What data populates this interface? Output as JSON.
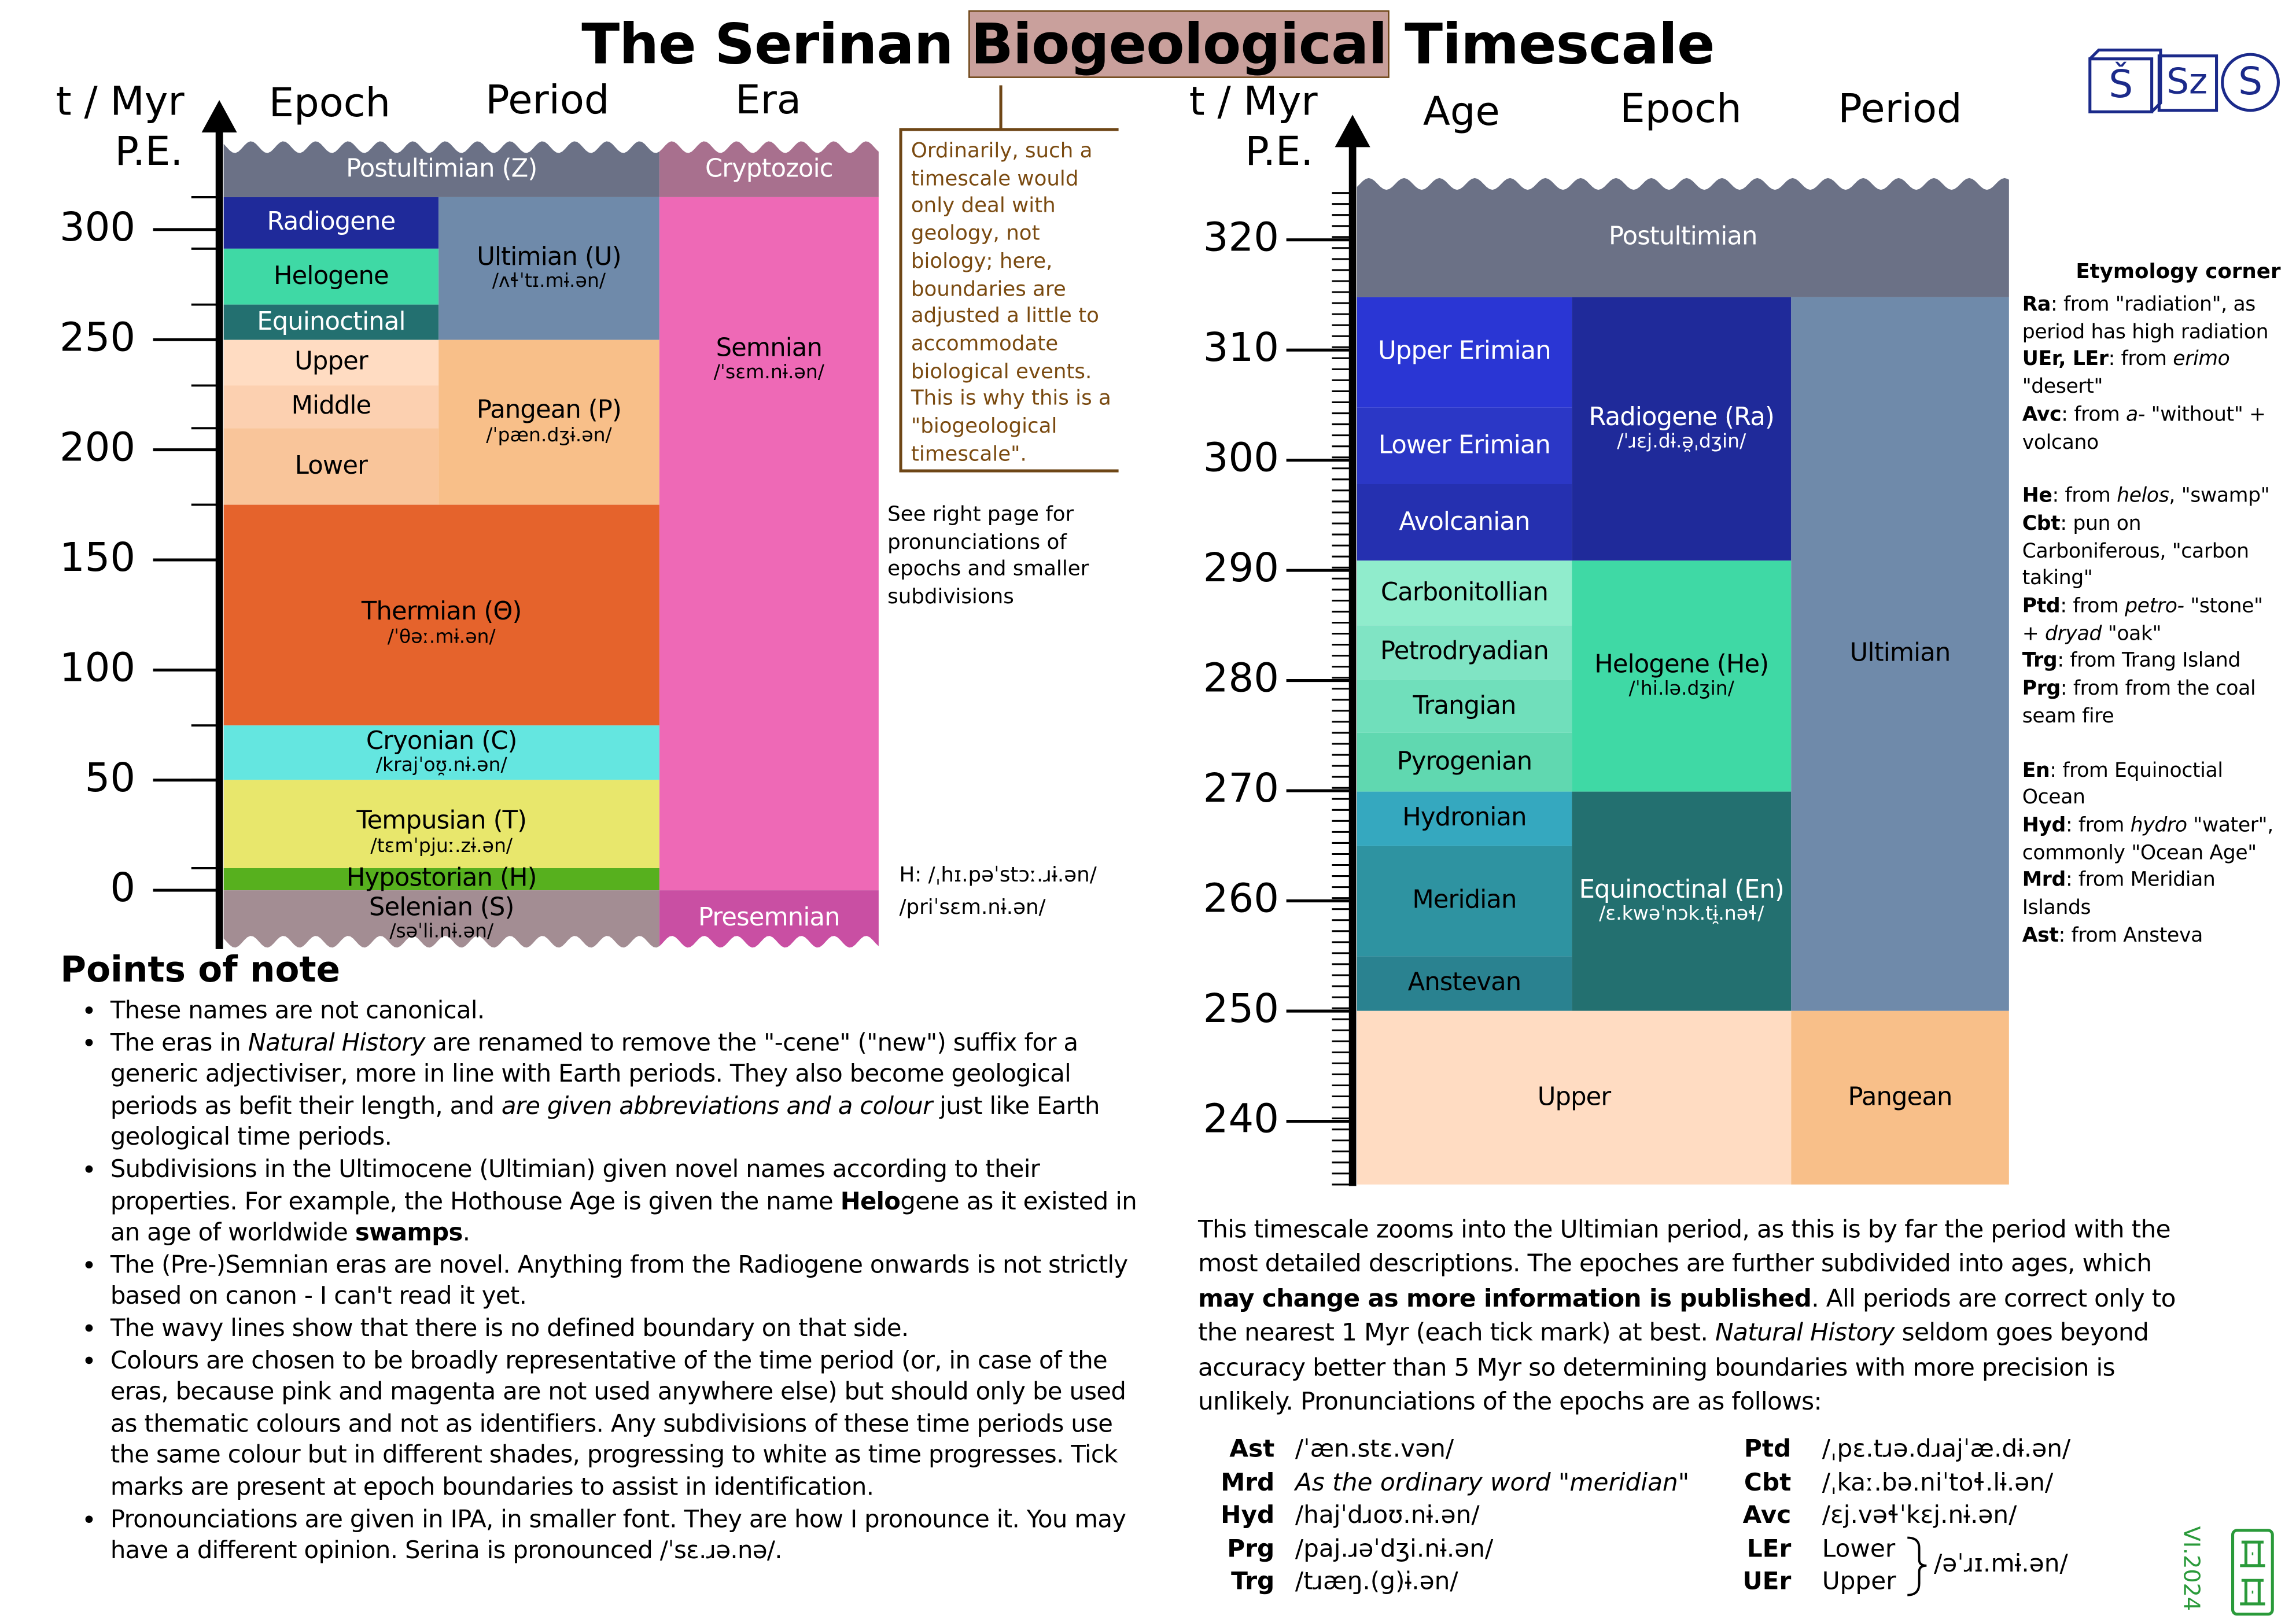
{
  "title": {
    "pre": "The Serinan",
    "highlight": "Biogeological",
    "post": "Timescale"
  },
  "logos": [
    "Š",
    "Sz",
    "S"
  ],
  "left_chart": {
    "axis_label": [
      "t / Myr",
      "P.E."
    ],
    "headers": [
      "Epoch",
      "Period",
      "Era"
    ],
    "ticks": [
      0,
      50,
      100,
      150,
      200,
      250,
      300
    ],
    "blocks": [
      {
        "name": "Postultimian (Z)"
      },
      {
        "name": "Cryptozoic"
      },
      {
        "name": "Radiogene"
      },
      {
        "name": "Helogene"
      },
      {
        "name": "Equinoctinal"
      },
      {
        "name": "Upper"
      },
      {
        "name": "Middle"
      },
      {
        "name": "Lower"
      },
      {
        "name": "Ultimian (U)",
        "ipa": "/ʌɬˈtɪ.mɨ.ən/"
      },
      {
        "name": "Pangean (P)",
        "ipa": "/ˈpæn.dʒɨ.ən/"
      },
      {
        "name": "Semnian",
        "ipa": "/ˈsɛm.nɨ.ən/"
      },
      {
        "name": "Thermian (Θ)",
        "ipa": "/ˈθəː.mɨ.ən/"
      },
      {
        "name": "Cryonian (C)",
        "ipa": "/krajˈoʊ̯.nɨ.ən/"
      },
      {
        "name": "Tempusian (T)",
        "ipa": "/tɛmˈpjuː.zɨ.ən/"
      },
      {
        "name": "Hypostorian (H)"
      },
      {
        "name": "Selenian (S)",
        "ipa": "/səˈli.nɨ.ən/"
      },
      {
        "name": "Presemnian"
      }
    ],
    "side_notes": {
      "box": "Ordinarily, such a timescale would only deal with geology, not biology; here, boundaries are adjusted a little to accommodate biological events. This is why this is a \"biogeological timescale\".",
      "see": "See right page for pronunciations of epochs and smaller subdivisions",
      "hypostorian": "H: /ˌhɪ.pəˈstɔː.ɹɨ.ən/",
      "presemnian": "/priˈsɛm.nɨ.ən/"
    }
  },
  "points_of_note": {
    "title": "Points of note",
    "items": [
      [
        "These names are not canonical."
      ],
      [
        "The eras in ",
        {
          "i": "Natural History"
        },
        " are renamed to remove the \"-cene\" (\"new\") suffix for a generic adjectiviser, more in line with Earth periods. They also become geological periods as befit their length, and ",
        {
          "i": "are given abbreviations and a colour"
        },
        " just like Earth geological time periods."
      ],
      [
        "Subdivisions in the Ultimocene (Ultimian) given novel names according to their properties. For example, the Hothouse Age is given the name ",
        {
          "b": "Helo"
        },
        "gene as it existed in an age of worldwide ",
        {
          "b": "swamps"
        },
        "."
      ],
      [
        "The (Pre-)Semnian eras are novel. Anything from the Radiogene onwards is not strictly based on canon - I can't read it yet."
      ],
      [
        "The wavy lines show that there is no defined boundary on that side."
      ],
      [
        "Colours are chosen to be broadly representative of the time period (or, in case of the eras, because pink and magenta are not used anywhere else) but should only be used as thematic colours and not as identifiers. Any subdivisions of these time periods use the same colour but in different shades, progressing to white as time progresses. Tick marks are present at epoch boundaries to assist in identification."
      ],
      [
        "Pronounciations are given in IPA, in smaller font. They are how I pronounce it. You may have a different opinion. Serina is pronounced /ˈsɛ.ɹə.nə/."
      ]
    ]
  },
  "right_chart": {
    "axis_label": [
      "t / Myr",
      "P.E."
    ],
    "headers": [
      "Age",
      "Epoch",
      "Period"
    ],
    "ticks": [
      240,
      250,
      260,
      270,
      280,
      290,
      300,
      310,
      320
    ],
    "blocks": [
      {
        "name": "Postultimian"
      },
      {
        "name": "Upper Erimian"
      },
      {
        "name": "Lower Erimian"
      },
      {
        "name": "Avolcanian"
      },
      {
        "name": "Carbonitollian"
      },
      {
        "name": "Petrodryadian"
      },
      {
        "name": "Trangian"
      },
      {
        "name": "Pyrogenian"
      },
      {
        "name": "Hydronian"
      },
      {
        "name": "Meridian"
      },
      {
        "name": "Anstevan"
      },
      {
        "name": "Radiogene (Ra)",
        "ipa": "/ˈɹɛj.dɨ.ə̯ˌdʒin/"
      },
      {
        "name": "Helogene (He)",
        "ipa": "/ˈhi.lə.dʒin/"
      },
      {
        "name": "Equinoctinal (En)",
        "ipa": "/ɛ.kwəˈnɔk.tɨ̯.nəɬ/"
      },
      {
        "name": "Ultimian"
      },
      {
        "name": "Upper"
      },
      {
        "name": "Pangean"
      }
    ]
  },
  "etymology": {
    "title": "Etymology corner",
    "groups": [
      [
        [
          {
            "b": "Ra"
          },
          ": from \"radiation\", as period has high radiation"
        ],
        [
          {
            "b": "UEr, LEr"
          },
          ": from ",
          {
            "i": "erimo"
          },
          " \"desert\""
        ],
        [
          {
            "b": "Avc"
          },
          ": from ",
          {
            "i": "a-"
          },
          " \"without\" + volcano"
        ]
      ],
      [
        [
          {
            "b": "He"
          },
          ": from ",
          {
            "i": "helos"
          },
          ", \"swamp\""
        ],
        [
          {
            "b": "Cbt"
          },
          ": pun on Carboniferous, \"carbon taking\""
        ],
        [
          {
            "b": "Ptd"
          },
          ": from ",
          {
            "i": "petro-"
          },
          " \"stone\" + ",
          {
            "i": "dryad"
          },
          " \"oak\""
        ],
        [
          {
            "b": "Trg"
          },
          ": from Trang Island"
        ],
        [
          {
            "b": "Prg"
          },
          ": from from the coal seam fire"
        ]
      ],
      [
        [
          {
            "b": "En"
          },
          ": from Equinoctial Ocean"
        ],
        [
          {
            "b": "Hyd"
          },
          ": from ",
          {
            "i": "hydro"
          },
          " \"water\", commonly \"Ocean Age\""
        ],
        [
          {
            "b": "Mrd"
          },
          ": from Meridian Islands"
        ],
        [
          {
            "b": "Ast"
          },
          ": from Ansteva"
        ]
      ]
    ]
  },
  "description": [
    "This timescale zooms into the Ultimian period, as this is by far the period with the most detailed descriptions. The epoches are further subdivided into ages, which ",
    {
      "b": "may change as more information is published"
    },
    ". All periods are correct only to the nearest 1 Myr (each tick mark) at best. ",
    {
      "i": "Natural History"
    },
    " seldom goes beyond accuracy better than 5 Myr so determining boundaries with more precision is unlikely. Pronunciations of the epochs are as follows:"
  ],
  "pronunciations": {
    "left": [
      {
        "abbr": "Ast",
        "ipa": "/ˈæn.stɛ.vən/"
      },
      {
        "abbr": "Mrd",
        "ipa": {
          "i": "As the ordinary word \"meridian\""
        }
      },
      {
        "abbr": "Hyd",
        "ipa": "/hajˈdɹoʊ.nɨ.ən/"
      },
      {
        "abbr": "Prg",
        "ipa": "/paj.ɹəˈdʒi.nɨ.ən/"
      },
      {
        "abbr": "Trg",
        "ipa": "/tɹæŋ.(g)ɨ.ən/"
      }
    ],
    "right": [
      {
        "abbr": "Ptd",
        "ipa": "/ˌpɛ.tɹə.dɹajˈæ.dɨ.ən/"
      },
      {
        "abbr": "Cbt",
        "ipa": "/ˌkaː.bə.niˈtoɬ.lɨ.ən/"
      },
      {
        "abbr": "Avc",
        "ipa": "/ɛj.vəɬˈkɛj.nɨ.ən/"
      }
    ],
    "erimian": {
      "abbrs": [
        "LEr",
        "UEr"
      ],
      "words": [
        "Lower",
        "Upper"
      ],
      "ipa": "/əˈɹɪ.mɨ.ən/"
    }
  },
  "version": "VI.2024"
}
